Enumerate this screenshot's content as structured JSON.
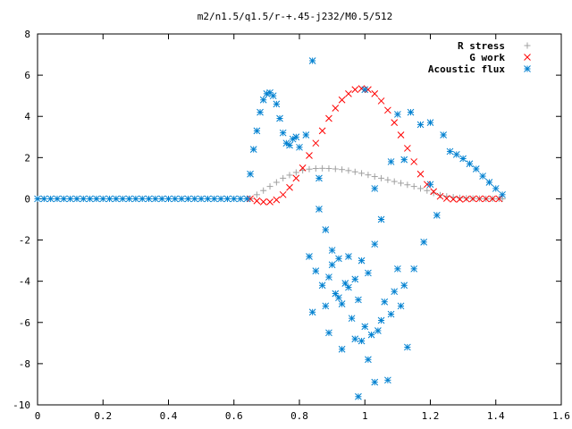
{
  "chart_data": {
    "type": "scatter",
    "title": "m2/n1.5/q1.5/r-+.45-j232/M0.5/512",
    "xlabel": "",
    "ylabel": "",
    "xlim": [
      0,
      1.6
    ],
    "ylim": [
      -10,
      8
    ],
    "xticks": [
      0,
      0.2,
      0.4,
      0.6,
      0.8,
      1,
      1.2,
      1.4,
      1.6
    ],
    "xtick_labels": [
      "0",
      "0.2",
      "0.4",
      "0.6",
      "0.8",
      "1",
      "1.2",
      "1.4",
      "1.6"
    ],
    "yticks": [
      -10,
      -8,
      -6,
      -4,
      -2,
      0,
      2,
      4,
      6,
      8
    ],
    "ytick_labels": [
      "-10",
      "-8",
      "-6",
      "-4",
      "-2",
      "0",
      "2",
      "4",
      "6",
      "8"
    ],
    "grid": false,
    "legend_position": "top-right",
    "series": [
      {
        "name": "R stress",
        "marker": "plus",
        "color": "#a0a0a0",
        "x": [
          0.65,
          0.67,
          0.69,
          0.71,
          0.73,
          0.75,
          0.77,
          0.79,
          0.81,
          0.83,
          0.85,
          0.87,
          0.89,
          0.91,
          0.93,
          0.95,
          0.97,
          0.99,
          1.01,
          1.03,
          1.05,
          1.07,
          1.09,
          1.11,
          1.13,
          1.15,
          1.17,
          1.19,
          1.21,
          1.23,
          1.25,
          1.27,
          1.29,
          1.31,
          1.33,
          1.35,
          1.37,
          1.39,
          1.41,
          1.42
        ],
        "y": [
          0.0,
          0.2,
          0.4,
          0.6,
          0.8,
          1.0,
          1.15,
          1.28,
          1.38,
          1.44,
          1.47,
          1.48,
          1.47,
          1.45,
          1.42,
          1.37,
          1.31,
          1.24,
          1.16,
          1.08,
          1.0,
          0.92,
          0.84,
          0.76,
          0.68,
          0.6,
          0.5,
          0.4,
          0.28,
          0.18,
          0.12,
          0.08,
          0.05,
          0.03,
          0.02,
          0.01,
          0.0,
          0.0,
          0.0,
          0.0
        ]
      },
      {
        "name": "G work",
        "marker": "cross",
        "color": "#ff0000",
        "x": [
          0.65,
          0.67,
          0.69,
          0.71,
          0.73,
          0.75,
          0.77,
          0.79,
          0.81,
          0.83,
          0.85,
          0.87,
          0.89,
          0.91,
          0.93,
          0.95,
          0.97,
          0.99,
          1.01,
          1.03,
          1.05,
          1.07,
          1.09,
          1.11,
          1.13,
          1.15,
          1.17,
          1.19,
          1.21,
          1.23,
          1.25,
          1.27,
          1.29,
          1.31,
          1.33,
          1.35,
          1.37,
          1.39,
          1.41
        ],
        "y": [
          0.0,
          -0.1,
          -0.15,
          -0.15,
          -0.05,
          0.2,
          0.55,
          1.0,
          1.5,
          2.1,
          2.7,
          3.3,
          3.9,
          4.4,
          4.8,
          5.1,
          5.3,
          5.35,
          5.3,
          5.1,
          4.75,
          4.3,
          3.7,
          3.1,
          2.45,
          1.8,
          1.2,
          0.7,
          0.35,
          0.12,
          0.02,
          -0.02,
          -0.02,
          -0.01,
          0.0,
          0.0,
          0.0,
          0.0,
          0.0
        ]
      },
      {
        "name": "Acoustic flux",
        "marker": "star",
        "color": "#0080d0",
        "x": [
          0.0,
          0.02,
          0.04,
          0.06,
          0.08,
          0.1,
          0.12,
          0.14,
          0.16,
          0.18,
          0.2,
          0.22,
          0.24,
          0.26,
          0.28,
          0.3,
          0.32,
          0.34,
          0.36,
          0.38,
          0.4,
          0.42,
          0.44,
          0.46,
          0.48,
          0.5,
          0.52,
          0.54,
          0.56,
          0.58,
          0.6,
          0.62,
          0.64,
          0.65,
          0.66,
          0.67,
          0.68,
          0.69,
          0.7,
          0.71,
          0.72,
          0.73,
          0.74,
          0.75,
          0.76,
          0.77,
          0.78,
          0.79,
          0.8,
          0.84,
          0.86,
          0.88,
          0.9,
          0.92,
          0.83,
          0.85,
          0.87,
          0.89,
          0.91,
          0.93,
          0.95,
          0.97,
          0.99,
          1.01,
          1.03,
          1.05,
          0.84,
          0.88,
          0.92,
          0.96,
          1.0,
          1.04,
          1.08,
          1.12,
          0.86,
          0.9,
          0.94,
          0.98,
          1.02,
          1.06,
          1.1,
          0.89,
          0.93,
          0.97,
          1.01,
          1.05,
          1.09,
          1.13,
          0.95,
          0.99,
          1.03,
          1.07,
          1.11,
          1.15,
          1.18,
          1.2,
          1.22,
          1.24,
          1.26,
          1.28,
          1.3,
          1.32,
          1.34,
          1.36,
          1.38,
          1.4,
          1.42,
          0.82,
          1.0,
          1.03,
          1.08,
          1.12,
          1.17,
          1.2,
          1.14,
          1.1,
          0.98
        ],
        "y": [
          0,
          0,
          0,
          0,
          0,
          0,
          0,
          0,
          0,
          0,
          0,
          0,
          0,
          0,
          0,
          0,
          0,
          0,
          0,
          0,
          0,
          0,
          0,
          0,
          0,
          0,
          0,
          0,
          0,
          0,
          0,
          0,
          0,
          1.2,
          2.4,
          3.3,
          4.2,
          4.8,
          5.1,
          5.15,
          5.0,
          4.6,
          3.9,
          3.2,
          2.7,
          2.6,
          2.9,
          3.0,
          2.5,
          6.7,
          1.0,
          -1.5,
          -2.5,
          -2.9,
          -2.8,
          -3.5,
          -4.2,
          -3.8,
          -4.6,
          -5.1,
          -4.3,
          -3.9,
          -3.0,
          -3.6,
          -2.2,
          -1.0,
          -5.5,
          -5.2,
          -4.8,
          -5.8,
          -6.2,
          -6.4,
          -5.6,
          -4.2,
          -0.5,
          -3.2,
          -4.1,
          -4.9,
          -6.6,
          -5.0,
          -3.4,
          -6.5,
          -7.3,
          -6.8,
          -7.8,
          -5.9,
          -4.5,
          -7.2,
          -2.8,
          -6.9,
          -8.9,
          -8.8,
          -5.2,
          -3.4,
          -2.1,
          0.7,
          -0.8,
          3.1,
          2.3,
          2.15,
          1.95,
          1.7,
          1.45,
          1.1,
          0.8,
          0.5,
          0.2,
          3.1,
          5.3,
          0.5,
          1.8,
          1.9,
          3.6,
          3.7,
          4.2,
          4.1,
          -9.6
        ]
      }
    ]
  }
}
